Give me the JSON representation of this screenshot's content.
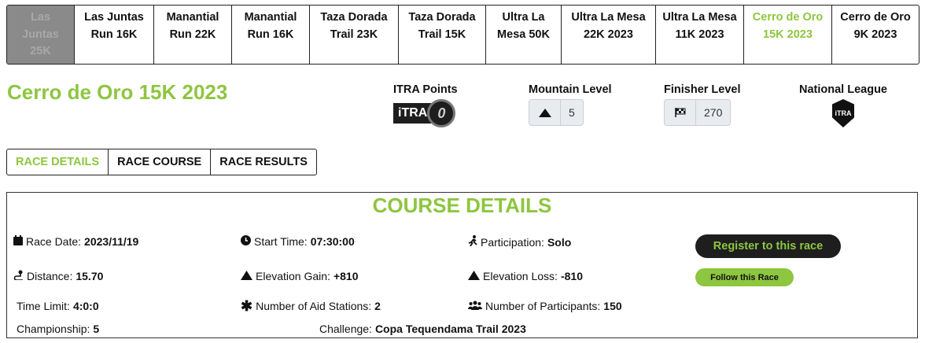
{
  "race_tabs": [
    {
      "label": "Las Juntas 25K",
      "state": "disabled"
    },
    {
      "label": "Las Juntas Run 16K",
      "state": ""
    },
    {
      "label": "Manantial Run 22K",
      "state": ""
    },
    {
      "label": "Manantial Run 16K",
      "state": ""
    },
    {
      "label": "Taza Dorada Trail 23K",
      "state": ""
    },
    {
      "label": "Taza Dorada Trail 15K",
      "state": ""
    },
    {
      "label": "Ultra La Mesa 50K",
      "state": ""
    },
    {
      "label": "Ultra La Mesa 22K 2023",
      "state": ""
    },
    {
      "label": "Ultra La Mesa 11K 2023",
      "state": ""
    },
    {
      "label": "Cerro de Oro 15K 2023",
      "state": "active"
    },
    {
      "label": "Cerro de Oro 9K 2023",
      "state": ""
    }
  ],
  "title": "Cerro de Oro 15K 2023",
  "stats": {
    "itra_label": "ITRA Points",
    "itra_logo": "iTRA",
    "itra_points": "0",
    "mountain_label": "Mountain Level",
    "mountain_icon": "mountain-icon",
    "mountain_value": "5",
    "finisher_label": "Finisher Level",
    "finisher_icon": "checkered-flag-icon",
    "finisher_value": "270",
    "league_label": "National League",
    "league_logo": "iTRA"
  },
  "subtabs": [
    "RACE DETAILS",
    "RACE COURSE",
    "RACE RESULTS"
  ],
  "course": {
    "heading": "COURSE DETAILS",
    "race_date_label": "Race Date:",
    "race_date": "2023/11/19",
    "start_time_label": "Start Time:",
    "start_time": "07:30:00",
    "participation_label": "Participation:",
    "participation": "Solo",
    "distance_label": "Distance:",
    "distance": "15.70",
    "gain_label": "Elevation Gain:",
    "gain": "+810",
    "loss_label": "Elevation Loss:",
    "loss": "-810",
    "time_limit_label": "Time Limit:",
    "time_limit": "4:0:0",
    "aid_label": "Number of Aid Stations:",
    "aid": "2",
    "participants_label": "Number of Participants:",
    "participants": "150",
    "championship_label": "Championship:",
    "championship": "5",
    "challenge_label": "Challenge:",
    "challenge": "Copa Tequendama Trail 2023",
    "register_label": "Register to this race",
    "follow_label": "Follow this Race"
  },
  "colors": {
    "accent": "#8dc63f",
    "dark": "#1e1e1e"
  }
}
